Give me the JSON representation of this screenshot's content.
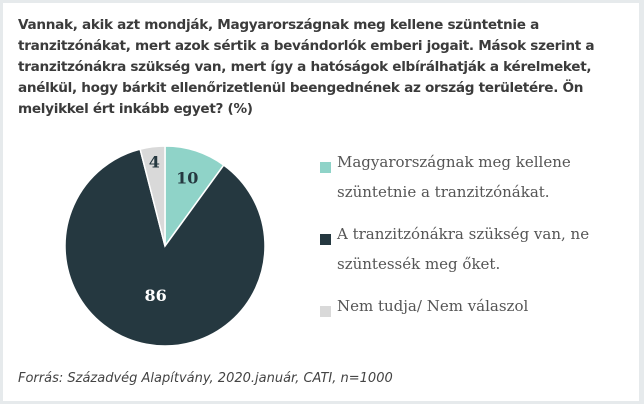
{
  "chart_data": {
    "type": "pie",
    "title": "Vannak, akik azt mondják, Magyarországnak meg kellene szüntetnie a tranzitzónákat, mert azok sértik a bevándorlók emberi jogait. Mások szerint a tranzitzónákra szükség van, mert így a hatóságok elbírálhatják a kérelmeket, anélkül, hogy bárkit ellenőrizetlenül beengednének az ország területére. Ön melyikkel ért inkább egyet? (%)",
    "slices": [
      {
        "label": "Magyarországnak meg kellene szüntetnie a tranzitzónákat.",
        "value": 10,
        "color": "#8fd3c8",
        "label_color": "#253840"
      },
      {
        "label": "A tranzitzónákra szükség van, ne szüntessék meg őket.",
        "value": 86,
        "color": "#253840",
        "label_color": "#ffffff"
      },
      {
        "label": "Nem tudja/ Nem válaszol",
        "value": 4,
        "color": "#d9d9d9",
        "label_color": "#253840"
      }
    ],
    "legend_position": "right",
    "source": "Forrás: Századvég Alapítvány, 2020.január, CATI, n=1000"
  }
}
